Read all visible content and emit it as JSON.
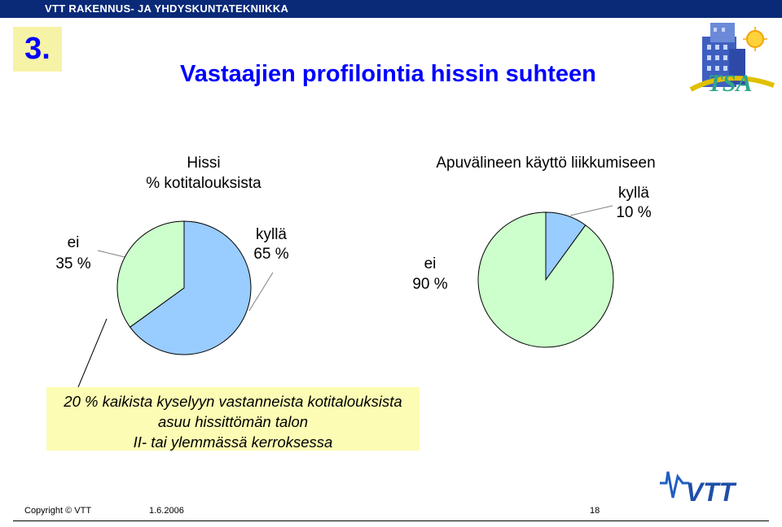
{
  "header": {
    "org": "VTT RAKENNUS- JA YHDYSKUNTATEKNIIKKA"
  },
  "slide": {
    "number": "3.",
    "title": "Vastaajien profilointia hissin suhteen"
  },
  "chart_data": [
    {
      "type": "pie",
      "title_line1": "Hissi",
      "title_line2": "% kotitalouksista",
      "slices": [
        {
          "label": "kyllä",
          "value": 65,
          "value_label": "65 %",
          "color": "#99ccff"
        },
        {
          "label": "ei",
          "value": 35,
          "value_label": "35 %",
          "color": "#ccffcc"
        }
      ]
    },
    {
      "type": "pie",
      "title": "Apuvälineen käyttö liikkumiseen",
      "slices": [
        {
          "label": "kyllä",
          "value": 10,
          "value_label": "10 %",
          "color": "#99ccff"
        },
        {
          "label": "ei",
          "value": 90,
          "value_label": "90 %",
          "color": "#ccffcc"
        }
      ]
    }
  ],
  "note": {
    "line1": "20 % kaikista kyselyyn vastanneista kotitalouksista",
    "line2": "asuu hissittömän talon",
    "line3": "II- tai ylemmässä kerroksessa"
  },
  "logos": {
    "tsa_text": "TSA",
    "vtt_text": "VTT"
  },
  "footer": {
    "copyright": "Copyright © VTT",
    "date": "1.6.2006",
    "page": "18"
  }
}
